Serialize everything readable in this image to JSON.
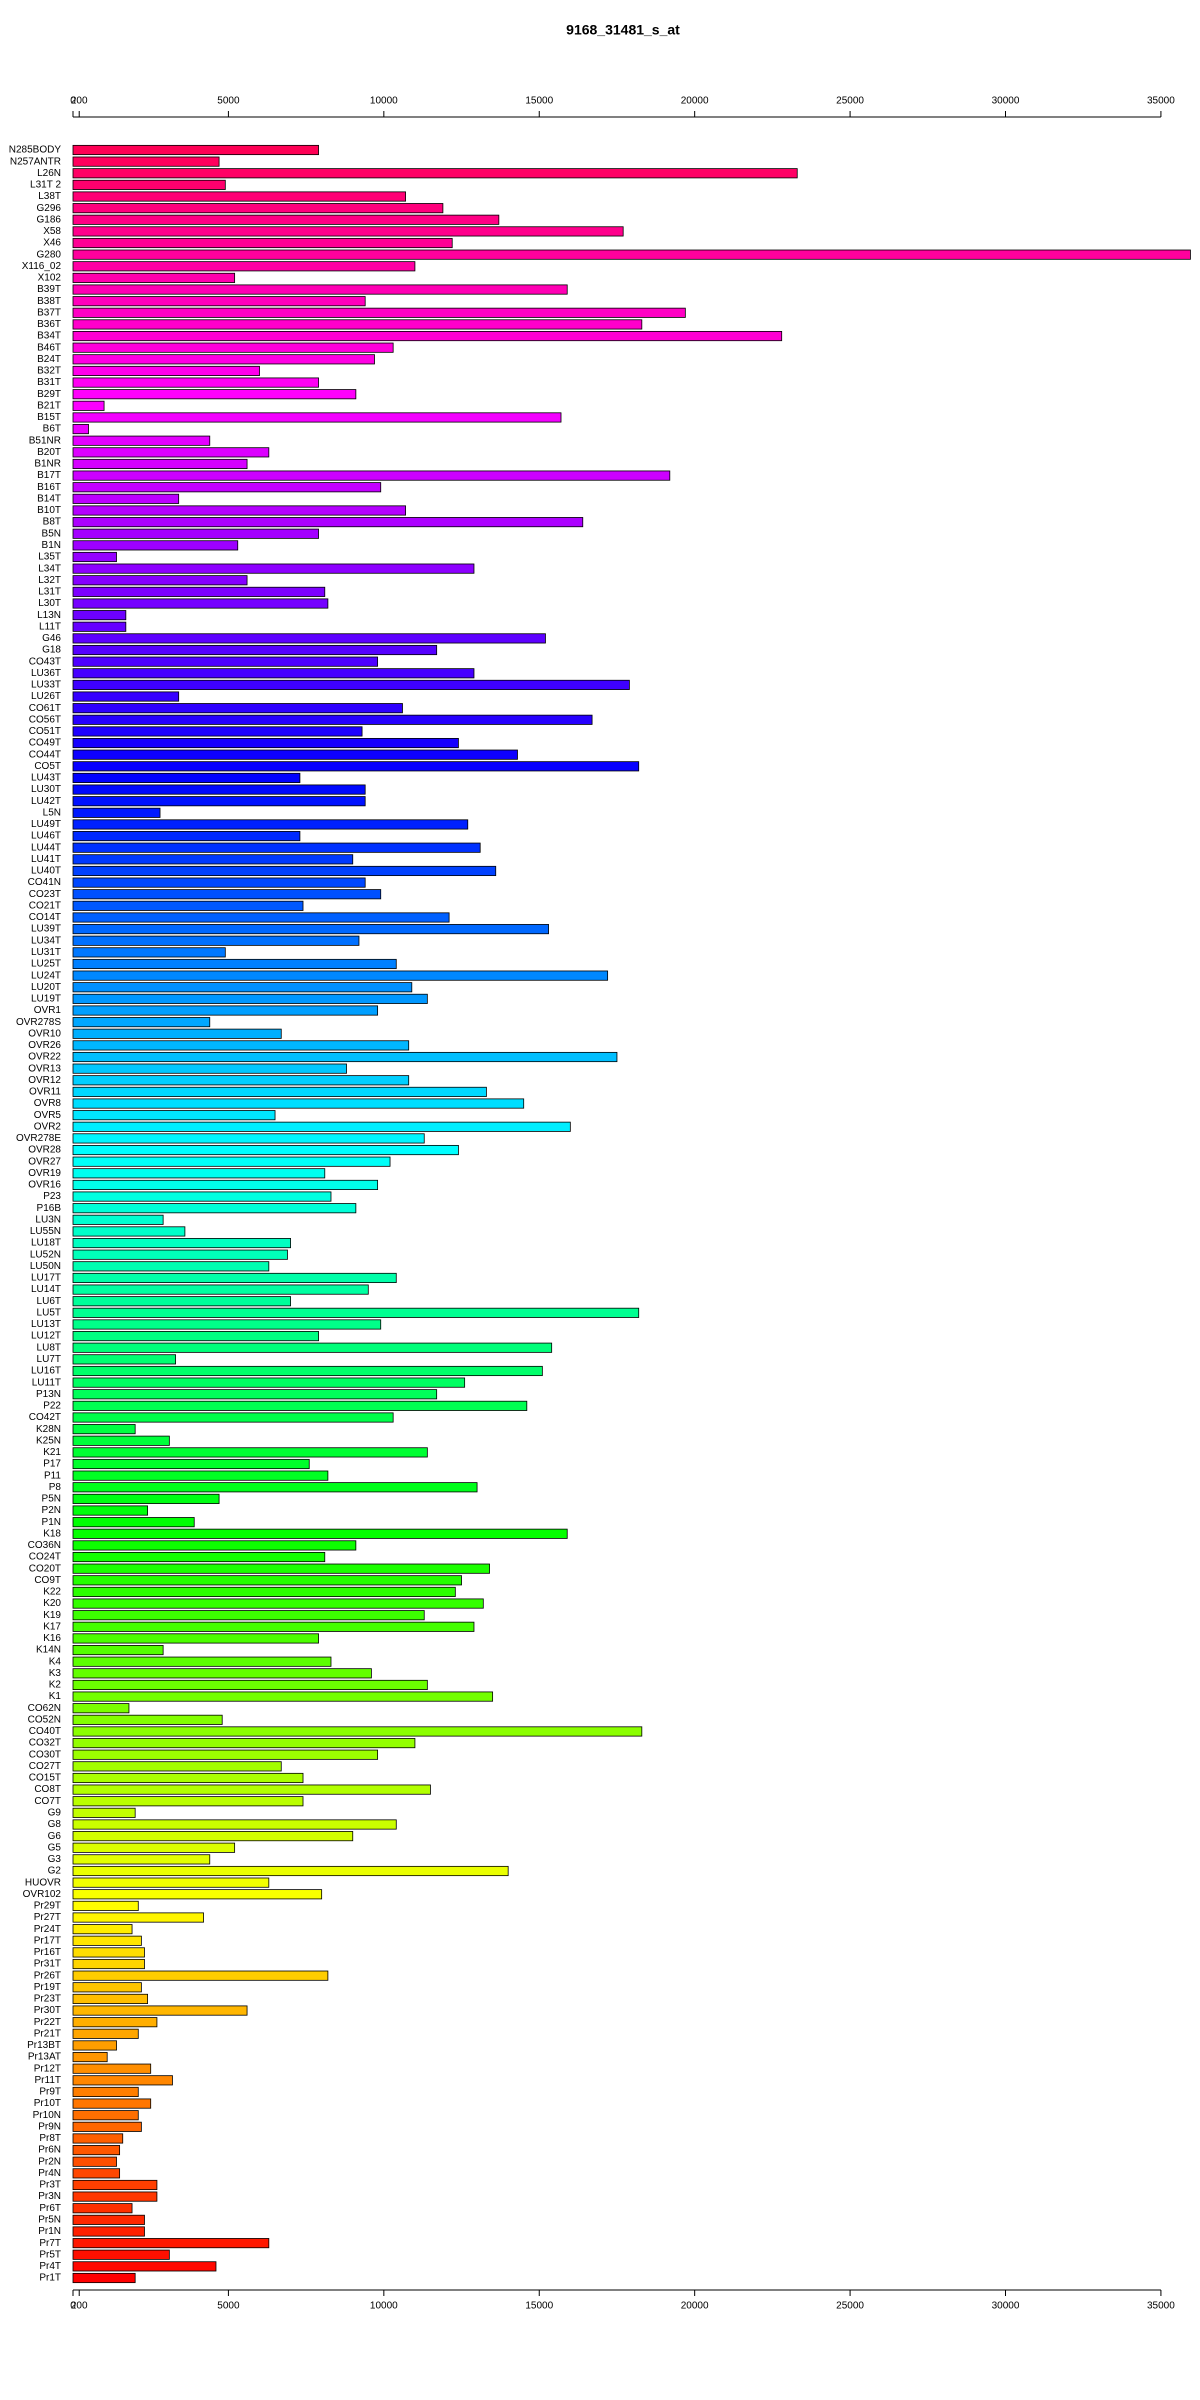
{
  "chart_data": {
    "type": "hbar",
    "title": "9168_31481_s_at",
    "categories": [
      "N285BODY",
      "N257ANTR",
      "L26N",
      "L31T 2",
      "L38T",
      "G296",
      "G186",
      "X58",
      "X46",
      "G280",
      "X116_02",
      "X102",
      "B39T",
      "B38T",
      "B37T",
      "B36T",
      "B34T",
      "B46T",
      "B24T",
      "B32T",
      "B31T",
      "B29T",
      "B21T",
      "B15T",
      "B6T",
      "B51NR",
      "B20T",
      "B1NR",
      "B17T",
      "B16T",
      "B14T",
      "B10T",
      "B8T",
      "B5N",
      "B1N",
      "L35T",
      "L34T",
      "L32T",
      "L31T",
      "L30T",
      "L13N",
      "L11T",
      "G46",
      "G18",
      "CO43T",
      "LU36T",
      "LU33T",
      "LU26T",
      "CO61T",
      "CO56T",
      "CO51T",
      "CO49T",
      "CO44T",
      "CO5T",
      "LU43T",
      "LU30T",
      "LU42T",
      "L5N",
      "LU49T",
      "LU46T",
      "LU44T",
      "LU41T",
      "LU40T",
      "CO41N",
      "CO23T",
      "CO21T",
      "CO14T",
      "LU39T",
      "LU34T",
      "LU31T",
      "LU25T",
      "LU24T",
      "LU20T",
      "LU19T",
      "OVR1",
      "OVR278S",
      "OVR10",
      "OVR26",
      "OVR22",
      "OVR13",
      "OVR12",
      "OVR11",
      "OVR8",
      "OVR5",
      "OVR2",
      "OVR278E",
      "OVR28",
      "OVR27",
      "OVR19",
      "OVR16",
      "P23",
      "P16B",
      "LU3N",
      "LU55N",
      "LU18T",
      "LU52N",
      "LU50N",
      "LU17T",
      "LU14T",
      "LU6T",
      "LU5T",
      "LU13T",
      "LU12T",
      "LU8T",
      "LU7T",
      "LU16T",
      "LU11T",
      "P13N",
      "P22",
      "CO42T",
      "K28N",
      "K25N",
      "K21",
      "P17",
      "P11",
      "P8",
      "P5N",
      "P2N",
      "P1N",
      "K18",
      "CO36N",
      "CO24T",
      "CO20T",
      "CO9T",
      "K22",
      "K20",
      "K19",
      "K17",
      "K16",
      "K14N",
      "K4",
      "K3",
      "K2",
      "K1",
      "CO62N",
      "CO52N",
      "CO40T",
      "CO32T",
      "CO30T",
      "CO27T",
      "CO15T",
      "CO8T",
      "CO7T",
      "G9",
      "G8",
      "G6",
      "G5",
      "G3",
      "G2",
      "HUOVR",
      "OVR102",
      "Pr29T",
      "Pr27T",
      "Pr24T",
      "Pr17T",
      "Pr16T",
      "Pr31T",
      "Pr26T",
      "Pr19T",
      "Pr23T",
      "Pr30T",
      "Pr22T",
      "Pr21T",
      "Pr13BT",
      "Pr13AT",
      "Pr12T",
      "Pr11T",
      "Pr9T",
      "Pr10T",
      "Pr10N",
      "Pr9N",
      "Pr8T",
      "Pr6N",
      "Pr2N",
      "Pr4N",
      "Pr3T",
      "Pr3N",
      "Pr6T",
      "Pr5N",
      "Pr1N",
      "Pr7T",
      "Pr5T",
      "Pr4T",
      "Pr1T"
    ],
    "values": [
      7900,
      4700,
      23300,
      4900,
      10700,
      11900,
      13700,
      17700,
      12200,
      35950,
      11000,
      5200,
      15900,
      9400,
      19700,
      18300,
      22800,
      10300,
      9700,
      6000,
      7900,
      9100,
      1000,
      15700,
      500,
      4400,
      6300,
      5600,
      19200,
      9900,
      3400,
      10700,
      16400,
      7900,
      5300,
      1400,
      12900,
      5600,
      8100,
      8200,
      1700,
      1700,
      15200,
      11700,
      9800,
      12900,
      17900,
      3400,
      10600,
      16700,
      9300,
      12400,
      14300,
      18200,
      7300,
      9400,
      9400,
      2800,
      12700,
      7300,
      13100,
      9000,
      13600,
      9400,
      9900,
      7400,
      12100,
      15300,
      9200,
      4900,
      10400,
      17200,
      10900,
      11400,
      9800,
      4400,
      6700,
      10800,
      17500,
      8800,
      10800,
      13300,
      14500,
      6500,
      16000,
      11300,
      12400,
      10200,
      8100,
      9800,
      8300,
      9100,
      2900,
      3600,
      7000,
      6900,
      6300,
      10400,
      9500,
      7000,
      18200,
      9900,
      7900,
      15400,
      3300,
      15100,
      12600,
      11700,
      14600,
      10300,
      2000,
      3100,
      11400,
      7600,
      8200,
      13000,
      4700,
      2400,
      3900,
      15900,
      9100,
      8100,
      13400,
      12500,
      12300,
      13200,
      11300,
      12900,
      7900,
      2900,
      8300,
      9600,
      11400,
      13500,
      1800,
      4800,
      18300,
      11000,
      9800,
      6700,
      7400,
      11500,
      7400,
      2000,
      10400,
      9000,
      5200,
      4400,
      14000,
      6300,
      8000,
      2100,
      4200,
      1900,
      2200,
      2300,
      2300,
      8200,
      2200,
      2400,
      5600,
      2700,
      2100,
      1400,
      1100,
      2500,
      3200,
      2100,
      2500,
      2100,
      2200,
      1600,
      1500,
      1400,
      1500,
      2700,
      2700,
      1900,
      2300,
      2300,
      6300,
      3100,
      4600,
      2000
    ],
    "xlim": [
      0,
      36000
    ],
    "xticks": [
      0,
      200,
      5000,
      10000,
      15000,
      20000,
      25000,
      30000,
      35000
    ]
  }
}
